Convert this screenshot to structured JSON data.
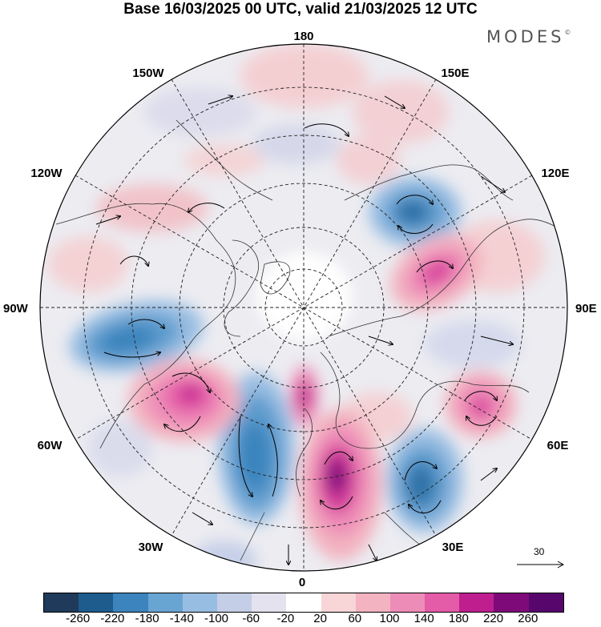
{
  "title": "Base 16/03/2025 00 UTC, valid 21/03/2025 12 UTC",
  "logo": {
    "text": "MODES",
    "mark": "©"
  },
  "longitude_labels": {
    "top": "180",
    "bottom": "0",
    "left": "90W",
    "right": "90E",
    "upper_left": "150W",
    "upper_right": "150E",
    "mid_upper_left": "120W",
    "mid_upper_right": "120E",
    "mid_lower_left": "60W",
    "mid_lower_right": "60E",
    "lower_left": "30W",
    "lower_right": "30E"
  },
  "reference_vector": {
    "label": "30",
    "icon": "right-arrow-icon"
  },
  "colorbar": {
    "colors": [
      "#1f3a5a",
      "#1d5c8c",
      "#3b84bd",
      "#69a5d2",
      "#98bde2",
      "#c4cee6",
      "#e4e2ef",
      "#ffffff",
      "#f8d6d8",
      "#f3b3c0",
      "#ee8cb8",
      "#e45ba7",
      "#bf1e8e",
      "#7e0a7a",
      "#57066c"
    ],
    "ticks": [
      "-260",
      "-220",
      "-180",
      "-140",
      "-100",
      "-60",
      "-20",
      "20",
      "60",
      "100",
      "140",
      "180",
      "220",
      "260"
    ]
  },
  "anomaly_centers": [
    {
      "sign": "negative",
      "level": -180,
      "region": "north-atlantic"
    },
    {
      "sign": "negative",
      "level": -180,
      "region": "north-america-east"
    },
    {
      "sign": "negative",
      "level": -180,
      "region": "east-siberia"
    },
    {
      "sign": "negative",
      "level": -180,
      "region": "eastern-europe"
    },
    {
      "sign": "positive",
      "level": 220,
      "region": "scandinavia-uk"
    },
    {
      "sign": "positive",
      "level": 180,
      "region": "labrador-greenland"
    },
    {
      "sign": "positive",
      "level": 140,
      "region": "central-siberia"
    },
    {
      "sign": "positive",
      "level": 140,
      "region": "central-asia"
    }
  ]
}
